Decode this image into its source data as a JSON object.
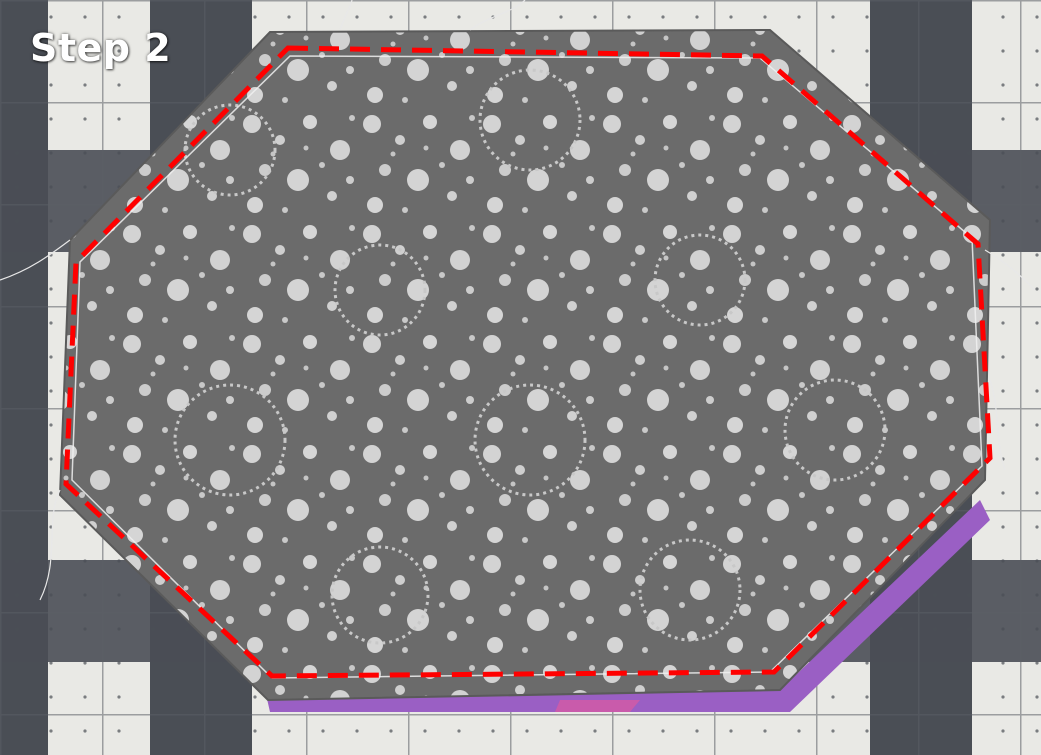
{
  "caption": {
    "text": "Step 2"
  },
  "colors": {
    "mat_light": "#e9e9e5",
    "mat_dark": "#4a4e55",
    "fabric": "#6c6c6c",
    "dots": "#d7d7d7",
    "stitch_line": "#ff0000",
    "backing": "#9a5fc4"
  }
}
